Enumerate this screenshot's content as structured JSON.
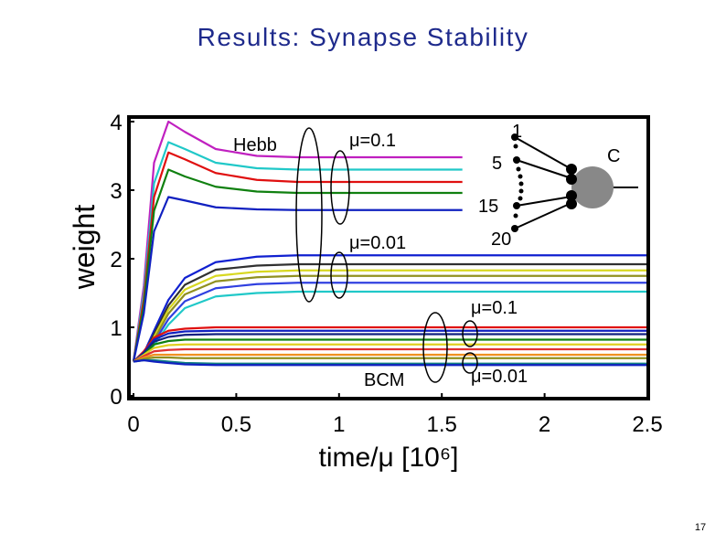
{
  "slide": {
    "title": "Results: Synapse Stability",
    "page_number": "17"
  },
  "chart_data": {
    "type": "line",
    "x_label": "time/μ [10⁶]",
    "y_label": "weight",
    "xlim": [
      0,
      2.5
    ],
    "ylim": [
      0,
      4
    ],
    "xticks": [
      0,
      0.5,
      1,
      1.5,
      2,
      2.5
    ],
    "yticks": [
      0,
      1,
      2,
      3,
      4
    ],
    "x": [
      0,
      0.05,
      0.1,
      0.17,
      0.25,
      0.4,
      0.6,
      0.8,
      1.6,
      2.5
    ],
    "annotations": [
      "Hebb",
      "μ=0.1",
      "μ=0.01",
      "BCM",
      "μ=0.1",
      "μ=0.01",
      "C",
      "1",
      "5",
      "15",
      "20"
    ],
    "series": [
      {
        "color": "#c020c0",
        "values": [
          0.5,
          1.6,
          3.4,
          4.0,
          3.85,
          3.6,
          3.5,
          3.48,
          3.48,
          null
        ]
      },
      {
        "color": "#20c8c8",
        "values": [
          0.5,
          1.5,
          3.1,
          3.7,
          3.6,
          3.4,
          3.32,
          3.3,
          3.3,
          null
        ]
      },
      {
        "color": "#e01010",
        "values": [
          0.5,
          1.4,
          2.9,
          3.55,
          3.45,
          3.25,
          3.15,
          3.12,
          3.12,
          null
        ]
      },
      {
        "color": "#108010",
        "values": [
          0.5,
          1.3,
          2.7,
          3.3,
          3.2,
          3.05,
          2.98,
          2.96,
          2.96,
          null
        ]
      },
      {
        "color": "#1020c0",
        "values": [
          0.5,
          1.2,
          2.4,
          2.9,
          2.85,
          2.75,
          2.72,
          2.71,
          2.71,
          null
        ]
      },
      {
        "color": "#1020d0",
        "values": [
          0.5,
          0.62,
          0.95,
          1.4,
          1.72,
          1.95,
          2.03,
          2.05,
          2.05,
          2.05
        ]
      },
      {
        "color": "#303030",
        "values": [
          0.5,
          0.6,
          0.9,
          1.32,
          1.62,
          1.84,
          1.9,
          1.92,
          1.92,
          1.92
        ]
      },
      {
        "color": "#d8d820",
        "values": [
          0.5,
          0.6,
          0.86,
          1.26,
          1.55,
          1.75,
          1.81,
          1.83,
          1.83,
          1.83
        ]
      },
      {
        "color": "#909020",
        "values": [
          0.5,
          0.58,
          0.82,
          1.2,
          1.48,
          1.67,
          1.73,
          1.75,
          1.75,
          1.75
        ]
      },
      {
        "color": "#3040e0",
        "values": [
          0.5,
          0.57,
          0.78,
          1.12,
          1.38,
          1.57,
          1.63,
          1.65,
          1.65,
          1.65
        ]
      },
      {
        "color": "#20c8c8",
        "values": [
          0.5,
          0.56,
          0.74,
          1.04,
          1.28,
          1.45,
          1.5,
          1.52,
          1.52,
          1.52
        ]
      },
      {
        "color": "#e01010",
        "values": [
          0.5,
          0.65,
          0.85,
          0.95,
          0.98,
          1.0,
          1.0,
          1.0,
          1.0,
          1.0
        ]
      },
      {
        "color": "#1020c0",
        "values": [
          0.5,
          0.63,
          0.82,
          0.91,
          0.94,
          0.95,
          0.95,
          0.95,
          0.95,
          0.95
        ]
      },
      {
        "color": "#102080",
        "values": [
          0.5,
          0.62,
          0.79,
          0.86,
          0.89,
          0.9,
          0.9,
          0.9,
          0.9,
          0.9
        ]
      },
      {
        "color": "#108010",
        "values": [
          0.5,
          0.6,
          0.75,
          0.8,
          0.82,
          0.82,
          0.82,
          0.82,
          0.82,
          0.82
        ]
      },
      {
        "color": "#e0d020",
        "values": [
          0.5,
          0.6,
          0.7,
          0.74,
          0.75,
          0.75,
          0.75,
          0.75,
          0.75,
          0.75
        ]
      },
      {
        "color": "#e03030",
        "values": [
          0.5,
          0.58,
          0.65,
          0.67,
          0.68,
          0.68,
          0.68,
          0.68,
          0.68,
          0.68
        ]
      },
      {
        "color": "#f09020",
        "values": [
          0.5,
          0.56,
          0.6,
          0.6,
          0.6,
          0.6,
          0.6,
          0.6,
          0.6,
          0.6
        ]
      },
      {
        "color": "#909020",
        "values": [
          0.5,
          0.54,
          0.56,
          0.56,
          0.55,
          0.55,
          0.55,
          0.55,
          0.55,
          0.55
        ]
      },
      {
        "color": "#108080",
        "values": [
          0.5,
          0.52,
          0.52,
          0.5,
          0.48,
          0.47,
          0.47,
          0.47,
          0.47,
          0.47
        ]
      },
      {
        "color": "#1020c0",
        "values": [
          0.5,
          0.52,
          0.5,
          0.48,
          0.46,
          0.45,
          0.45,
          0.45,
          0.45,
          0.45
        ]
      }
    ]
  }
}
